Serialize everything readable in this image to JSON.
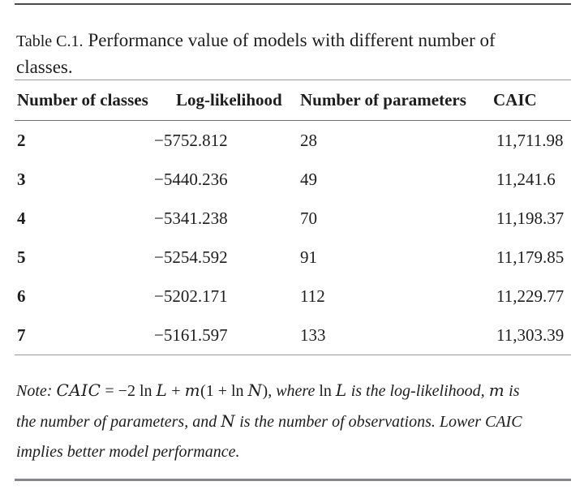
{
  "caption": {
    "label": "Table C.1.",
    "line1": "Performance value of models with different number of",
    "line2": "classes."
  },
  "table": {
    "columns": [
      "Number of classes",
      "Log-likelihood",
      "Number of parameters",
      "CAIC"
    ],
    "rows": [
      [
        "2",
        "−5752.812",
        "28",
        "11,711.98"
      ],
      [
        "3",
        "−5440.236",
        "49",
        "11,241.6"
      ],
      [
        "4",
        "−5341.238",
        "70",
        "11,198.37"
      ],
      [
        "5",
        "−5254.592",
        "91",
        "11,179.85"
      ],
      [
        "6",
        "−5202.171",
        "112",
        "11,229.77"
      ],
      [
        "7",
        "−5161.597",
        "133",
        "11,303.39"
      ]
    ]
  },
  "note": {
    "lines": [
      [
        {
          "text": "Note: ",
          "style": "it"
        },
        {
          "text": "CAIC",
          "style": "mathit"
        },
        {
          "text": " = −2 ln ",
          "style": "rm"
        },
        {
          "text": "L",
          "style": "mathit"
        },
        {
          "text": " + ",
          "style": "rm"
        },
        {
          "text": "m",
          "style": "mathit"
        },
        {
          "text": "(1 + ln ",
          "style": "rm"
        },
        {
          "text": "N",
          "style": "mathit"
        },
        {
          "text": "), ",
          "style": "rm"
        },
        {
          "text": "where ",
          "style": "it"
        },
        {
          "text": "ln ",
          "style": "rm"
        },
        {
          "text": "L",
          "style": "mathit"
        },
        {
          "text": " is the log-likelihood, ",
          "style": "it"
        },
        {
          "text": "m",
          "style": "mathit"
        },
        {
          "text": " is",
          "style": "it"
        }
      ],
      [
        {
          "text": "the number of parameters, and ",
          "style": "it"
        },
        {
          "text": "N",
          "style": "mathit"
        },
        {
          "text": " is the number of observations. Lower CAIC",
          "style": "it"
        }
      ],
      [
        {
          "text": "implies better model performance.",
          "style": "it"
        }
      ]
    ]
  },
  "colors": {
    "background": "#ffffff",
    "text": "#1d1d1d",
    "rule_dark": "#4a4a4a",
    "rule_gray": "#979797",
    "rule_bottom": "#85858a"
  }
}
